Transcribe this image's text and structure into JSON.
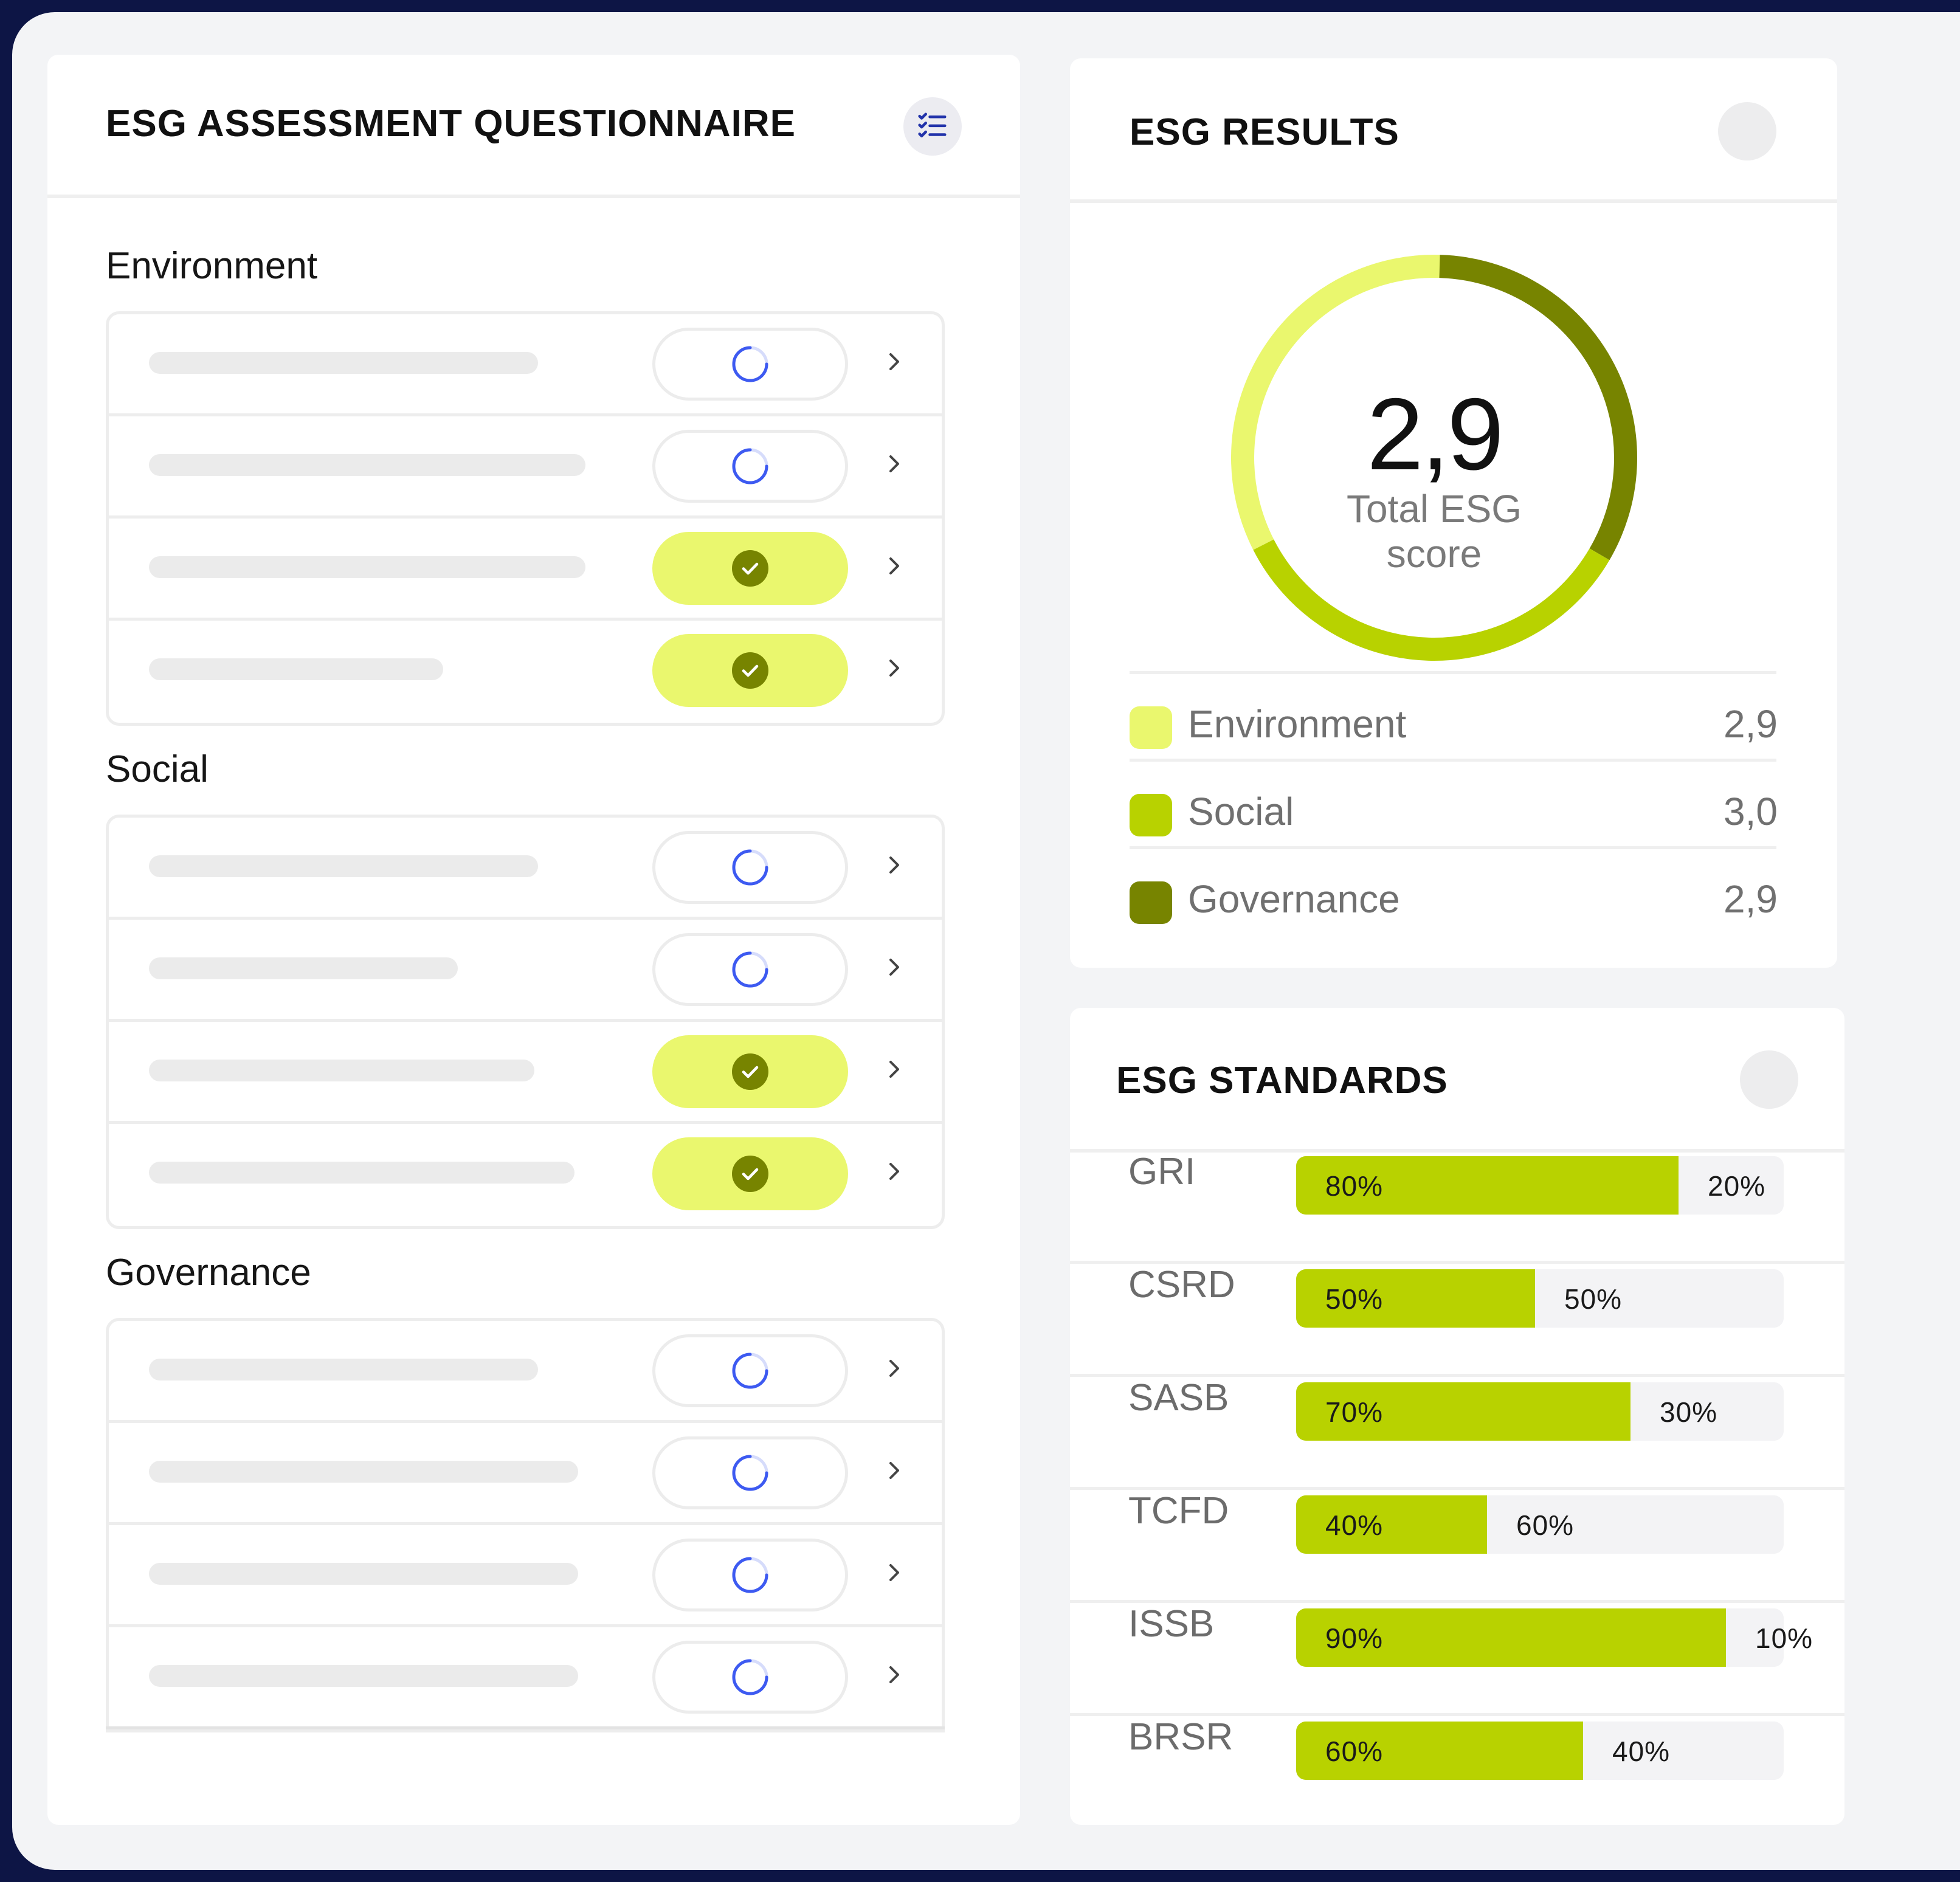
{
  "questionnaire": {
    "title": "ESG ASSESSMENT QUESTIONNAIRE",
    "icon": "checklist-icon",
    "sections": [
      {
        "name": "Environment",
        "rows": [
          {
            "status": "pending"
          },
          {
            "status": "pending"
          },
          {
            "status": "done"
          },
          {
            "status": "done"
          }
        ]
      },
      {
        "name": "Social",
        "rows": [
          {
            "status": "pending"
          },
          {
            "status": "pending"
          },
          {
            "status": "done"
          },
          {
            "status": "done"
          }
        ]
      },
      {
        "name": "Governance",
        "rows": [
          {
            "status": "pending"
          },
          {
            "status": "pending"
          },
          {
            "status": "pending"
          },
          {
            "status": "pending"
          }
        ]
      }
    ]
  },
  "results": {
    "title": "ESG RESULTS",
    "score": "2,9",
    "score_label_1": "Total ESG",
    "score_label_2": "score",
    "legend": [
      {
        "label": "Environment",
        "value": "2,9",
        "color": "#eaf76e"
      },
      {
        "label": "Social",
        "value": "3,0",
        "color": "#b8d200"
      },
      {
        "label": "Governance",
        "value": "2,9",
        "color": "#778400"
      }
    ]
  },
  "standards": {
    "title": "ESG STANDARDS",
    "items": [
      {
        "name": "GRI",
        "filled": 80,
        "filled_label": "80%",
        "rest_label": "20%"
      },
      {
        "name": "CSRD",
        "filled": 50,
        "filled_label": "50%",
        "rest_label": "50%"
      },
      {
        "name": "SASB",
        "filled": 70,
        "filled_label": "70%",
        "rest_label": "30%"
      },
      {
        "name": "TCFD",
        "filled": 40,
        "filled_label": "40%",
        "rest_label": "60%"
      },
      {
        "name": "ISSB",
        "filled": 90,
        "filled_label": "90%",
        "rest_label": "10%"
      },
      {
        "name": "BRSR",
        "filled": 60,
        "filled_label": "60%",
        "rest_label": "40%"
      }
    ]
  },
  "colors": {
    "accent_light": "#eaf76e",
    "accent": "#b8d200",
    "accent_dark": "#778400",
    "spinner": "#3d5af1",
    "navy": "#0d1545"
  }
}
